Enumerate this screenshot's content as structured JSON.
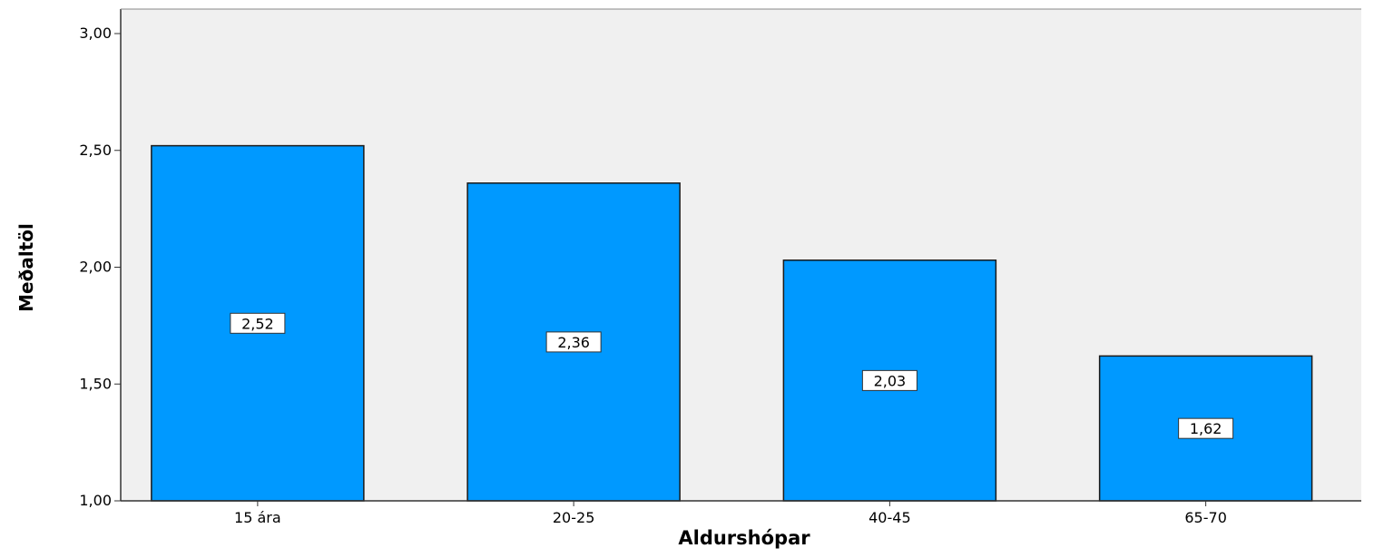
{
  "chart_data": {
    "type": "bar",
    "title": "",
    "xlabel": "Aldurshópar",
    "ylabel": "Meðaltöl",
    "categories": [
      "15 ára",
      "20-25",
      "40-45",
      "65-70"
    ],
    "values": [
      2.52,
      2.36,
      2.03,
      1.62
    ],
    "data_labels": [
      "2,52",
      "2,36",
      "2,03",
      "1,62"
    ],
    "ylim": [
      1.0,
      3.0
    ],
    "yticks": [
      1.0,
      1.5,
      2.0,
      2.5,
      3.0
    ],
    "ytick_labels": [
      "1,00",
      "1,50",
      "2,00",
      "2,50",
      "3,00"
    ],
    "grid": false,
    "legend": "none",
    "colors": {
      "bar_fill": "#0099FF",
      "bar_stroke": "#1a1a1a",
      "plot_background": "#F0F0F0",
      "axis": "#333333",
      "text": "#000000"
    }
  }
}
